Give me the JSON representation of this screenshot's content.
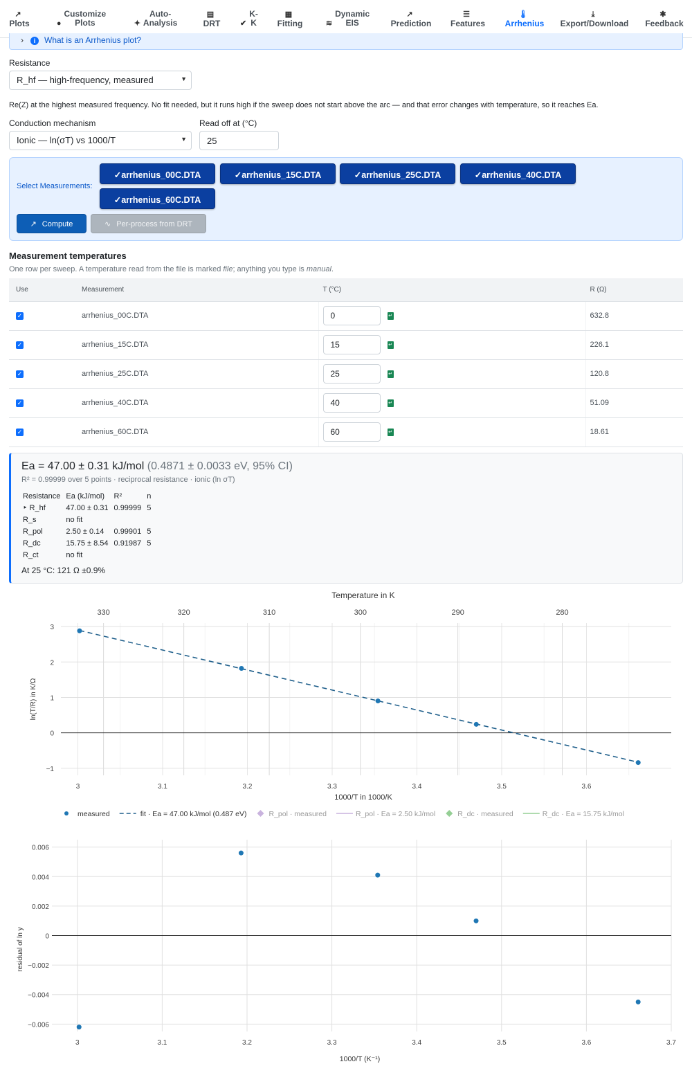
{
  "nav": [
    {
      "icon": "chart-line-icon",
      "glyph": "↗",
      "label_lines": [
        "Plots"
      ],
      "active": false
    },
    {
      "icon": "palette-icon",
      "glyph": "●",
      "label_lines": [
        "Customize",
        "Plots"
      ],
      "active": false
    },
    {
      "icon": "magic-wand-icon",
      "glyph": "✦",
      "label_lines": [
        "Auto-",
        "Analysis"
      ],
      "active": false
    },
    {
      "icon": "bar-chart-icon",
      "glyph": "▤",
      "label_lines": [
        "DRT"
      ],
      "active": false
    },
    {
      "icon": "check-double-icon",
      "glyph": "✔",
      "label_lines": [
        "K-",
        "K"
      ],
      "active": false
    },
    {
      "icon": "calculator-icon",
      "glyph": "▦",
      "label_lines": [
        "Fitting"
      ],
      "active": false
    },
    {
      "icon": "layers-icon",
      "glyph": "≋",
      "label_lines": [
        "Dynamic",
        "EIS"
      ],
      "active": false
    },
    {
      "icon": "chart-line-icon",
      "glyph": "↗",
      "label_lines": [
        "Prediction"
      ],
      "active": false
    },
    {
      "icon": "list-icon",
      "glyph": "☰",
      "label_lines": [
        "Features"
      ],
      "active": false
    },
    {
      "icon": "thermometer-icon",
      "glyph": "🌡",
      "label_lines": [
        "Arrhenius"
      ],
      "active": true
    },
    {
      "icon": "download-icon",
      "glyph": "⤓",
      "label_lines": [
        "Export/Download"
      ],
      "active": false
    },
    {
      "icon": "bug-icon",
      "glyph": "✱",
      "label_lines": [
        "Feedback"
      ],
      "active": false
    }
  ],
  "help_toggle": "What is an Arrhenius plot?",
  "resistance": {
    "label": "Resistance",
    "selected": "R_hf — high-frequency, measured",
    "description": "Re(Z) at the highest measured frequency. No fit needed, but it runs high if the sweep does not start above the arc — and that error changes with temperature, so it reaches Ea."
  },
  "mechanism": {
    "label": "Conduction mechanism",
    "selected": "Ionic — ln(σT) vs 1000/T"
  },
  "read_off": {
    "label": "Read off at (°C)",
    "value": "25"
  },
  "measurements": {
    "label": "Select Measurements:",
    "chips": [
      "✓arrhenius_00C.DTA",
      "✓arrhenius_15C.DTA",
      "✓arrhenius_25C.DTA",
      "✓arrhenius_40C.DTA",
      "✓arrhenius_60C.DTA"
    ],
    "compute": "Compute",
    "preprocess": "Per-process from DRT"
  },
  "temps": {
    "title": "Measurement temperatures",
    "subtitle_parts": [
      "One row per sweep. A temperature read from the file is marked ",
      "file",
      "; anything you type is ",
      "manual",
      "."
    ],
    "headers": [
      "Use",
      "Measurement",
      "T (°C)",
      "R (Ω)"
    ],
    "rows": [
      {
        "name": "arrhenius_00C.DTA",
        "t": "0",
        "r": "632.8"
      },
      {
        "name": "arrhenius_15C.DTA",
        "t": "15",
        "r": "226.1"
      },
      {
        "name": "arrhenius_25C.DTA",
        "t": "25",
        "r": "120.8"
      },
      {
        "name": "arrhenius_40C.DTA",
        "t": "40",
        "r": "51.09"
      },
      {
        "name": "arrhenius_60C.DTA",
        "t": "60",
        "r": "18.61"
      }
    ]
  },
  "result": {
    "main": "Ea = 47.00 ± 0.31 kJ/mol",
    "main_muted": "(0.4871 ± 0.0033 eV, 95% CI)",
    "sub": "R² = 0.99999 over 5 points · reciprocal resistance · ionic (ln σT)",
    "headers": [
      "Resistance",
      "Ea (kJ/mol)",
      "R²",
      "n"
    ],
    "rows": [
      {
        "res": "‣ R_hf",
        "ea": "47.00 ± 0.31",
        "r2": "0.99999",
        "n": "5"
      },
      {
        "res": "R_s",
        "ea": "no fit",
        "r2": "",
        "n": ""
      },
      {
        "res": "R_pol",
        "ea": "2.50 ± 0.14",
        "r2": "0.99901",
        "n": "5"
      },
      {
        "res": "R_dc",
        "ea": "15.75 ± 8.54",
        "r2": "0.91987",
        "n": "5"
      },
      {
        "res": "R_ct",
        "ea": "no fit",
        "r2": "",
        "n": ""
      }
    ],
    "readout": "At 25 °C: 121 Ω ±0.9%"
  },
  "chart_data": [
    {
      "type": "scatter",
      "title": "Temperature in K",
      "xlabel": "1000/T in 1000/K",
      "ylabel": "ln(T/R) in K/Ω",
      "xlim": [
        2.98,
        3.7
      ],
      "ylim": [
        -1.2,
        3.1
      ],
      "xticks": [
        3,
        3.1,
        3.2,
        3.3,
        3.4,
        3.5,
        3.6
      ],
      "yticks": [
        -1,
        0,
        1,
        2,
        3
      ],
      "top_ticks": [
        330,
        320,
        310,
        300,
        290,
        280
      ],
      "series": [
        {
          "name": "measured",
          "x": [
            3.002,
            3.193,
            3.354,
            3.47,
            3.661
          ],
          "y": [
            2.88,
            1.82,
            0.9,
            0.24,
            -0.84
          ],
          "color": "#1f77b4"
        },
        {
          "name": "fit · Ea = 47.00 kJ/mol (0.487 eV)",
          "x": [
            3.002,
            3.661
          ],
          "y": [
            2.89,
            -0.83
          ],
          "color": "#1f5f8b"
        }
      ],
      "legend": [
        {
          "name": "measured",
          "kind": "marker",
          "color": "#1f77b4",
          "muted": false
        },
        {
          "name": "fit · Ea = 47.00 kJ/mol (0.487 eV)",
          "kind": "dash",
          "color": "#1f5f8b",
          "muted": false
        },
        {
          "name": "R_pol · measured",
          "kind": "diamond",
          "color": "#9467bd",
          "muted": true
        },
        {
          "name": "R_pol · Ea = 2.50 kJ/mol",
          "kind": "line",
          "color": "#9467bd",
          "muted": true
        },
        {
          "name": "R_dc · measured",
          "kind": "diamond",
          "color": "#2ca02c",
          "muted": true
        },
        {
          "name": "R_dc · Ea = 15.75 kJ/mol",
          "kind": "line",
          "color": "#2ca02c",
          "muted": true
        }
      ],
      "legend_position": "bottom",
      "grid": true
    },
    {
      "type": "scatter",
      "xlabel": "1000/T (K⁻¹)",
      "ylabel": "residual of ln y",
      "xlim": [
        2.97,
        3.7
      ],
      "ylim": [
        -0.0065,
        0.0065
      ],
      "xticks": [
        3,
        3.1,
        3.2,
        3.3,
        3.4,
        3.5,
        3.6,
        3.7
      ],
      "yticks": [
        -0.006,
        -0.004,
        -0.002,
        0,
        0.002,
        0.004,
        0.006
      ],
      "ytick_labels": [
        "−0.006",
        "−0.004",
        "−0.002",
        "0",
        "0.002",
        "0.004",
        "0.006"
      ],
      "series": [
        {
          "name": "residual",
          "x": [
            3.002,
            3.193,
            3.354,
            3.47,
            3.661
          ],
          "y": [
            -0.0062,
            0.0056,
            0.0041,
            0.001,
            -0.0045
          ],
          "color": "#1f77b4"
        }
      ],
      "grid": true
    }
  ]
}
